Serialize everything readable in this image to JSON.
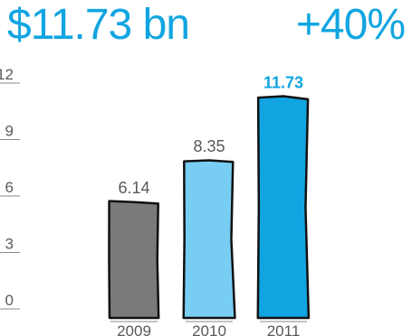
{
  "headline": {
    "value": "$11.73 bn",
    "growth": "+40%"
  },
  "colors": {
    "accent": "#10a5e0",
    "bar_2009": "#7a7a7c",
    "bar_2010": "#78cdf2",
    "bar_2011": "#10a5e0",
    "outline": "#111111",
    "axis_text": "#595959"
  },
  "chart_data": {
    "type": "bar",
    "categories": [
      "2009",
      "2010",
      "2011"
    ],
    "values": [
      6.14,
      8.35,
      11.73
    ],
    "value_labels": [
      "6.14",
      "8.35",
      "11.73"
    ],
    "ylim": [
      0,
      12
    ],
    "yticks": [
      "12",
      "9",
      "6",
      "3",
      "0"
    ],
    "ytick_values": [
      12,
      9,
      6,
      3,
      0
    ],
    "title": "",
    "xlabel": "",
    "ylabel": "",
    "grid": false,
    "highlight_last": true
  }
}
